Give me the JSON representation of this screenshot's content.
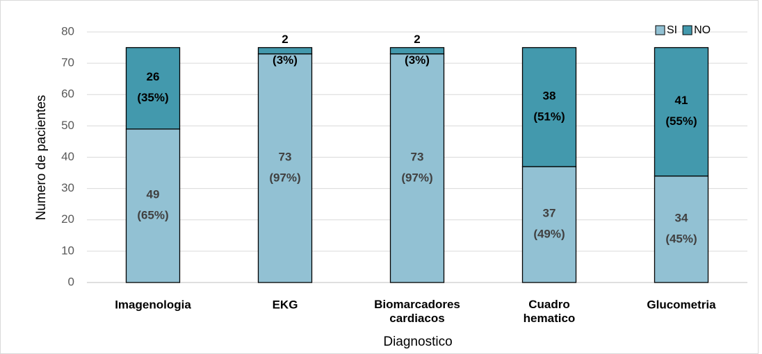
{
  "chart_data": {
    "type": "bar",
    "stacked": true,
    "categories": [
      "Imagenologia",
      "EKG",
      "Biomarcadores cardiacos",
      "Cuadro hematico",
      "Glucometria"
    ],
    "series": [
      {
        "name": "SI",
        "color": "#92c1d3",
        "values": [
          49,
          73,
          73,
          37,
          34
        ],
        "value_labels": [
          "49 (65%)",
          "73 (97%)",
          "73 (97%)",
          "37 (49%)",
          "34 (45%)"
        ],
        "label_color": "#404040"
      },
      {
        "name": "NO",
        "color": "#4399ad",
        "values": [
          26,
          2,
          2,
          38,
          41
        ],
        "value_labels": [
          "26 (35%)",
          "2 (3%)",
          "2 (3%)",
          "38 (51%)",
          "41 (55%)"
        ],
        "label_color": "#000000"
      }
    ],
    "xlabel": "Diagnostico",
    "ylabel": "Numero de pacientes",
    "ylim": [
      0,
      80
    ],
    "yticks": [
      0,
      10,
      20,
      30,
      40,
      50,
      60,
      70,
      80
    ],
    "grid": true,
    "legend": "top-right"
  }
}
